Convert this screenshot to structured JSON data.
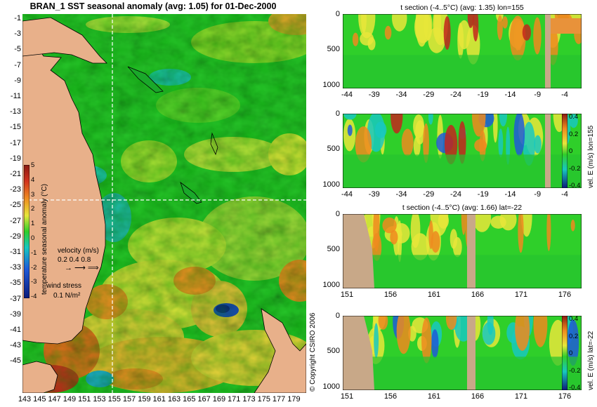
{
  "main_map": {
    "title": "BRAN_1  SST seasonal anomaly  (avg: 1.05)  for 01-Dec-2000",
    "lat_ticks": [
      "-1",
      "-3",
      "-5",
      "-7",
      "-9",
      "-11",
      "-13",
      "-15",
      "-17",
      "-19",
      "-21",
      "-23",
      "-25",
      "-27",
      "-29",
      "-31",
      "-33",
      "-35",
      "-37",
      "-39",
      "-41",
      "-43",
      "-45"
    ],
    "lon_ticks": [
      "143",
      "145",
      "147",
      "149",
      "151",
      "153",
      "155",
      "157",
      "159",
      "161",
      "163",
      "165",
      "167",
      "169",
      "171",
      "173",
      "175",
      "177",
      "179"
    ],
    "colorbar_ticks": [
      "5",
      "4",
      "3",
      "2",
      "1",
      "0",
      "-1",
      "-2",
      "-3",
      "-4"
    ],
    "colorbar_label": "temperature seasonal anomaly (°C)",
    "velocity_label": "velocity (m/s)",
    "velocity_scale": "0.2 0.4 0.8",
    "wind_label": "wind stress",
    "wind_scale": "0.1 N/m²",
    "copyright": "© Copyright CSIRO 2006",
    "section_lon": "155",
    "section_lat": "-22",
    "colors": {
      "land": "#e8b08a",
      "green": "#2fcf2a",
      "yellow": "#e8e63a",
      "orange": "#ef8a1e",
      "red": "#c2261c",
      "cyan": "#18c8c0",
      "blue": "#1f5ad8"
    }
  },
  "panels": [
    {
      "title": "t section (-4..5°C)  (avg: 1.35) lon=155",
      "x_ticks": [
        "-44",
        "-39",
        "-34",
        "-29",
        "-24",
        "-19",
        "-14",
        "-9",
        "-4"
      ],
      "y_ticks": [
        "0",
        "500",
        "1000"
      ]
    },
    {
      "title": "",
      "x_ticks": [
        "-44",
        "-39",
        "-34",
        "-29",
        "-24",
        "-19",
        "-14",
        "-9",
        "-4"
      ],
      "y_ticks": [
        "0",
        "500",
        "1000"
      ],
      "colorbar_ticks": [
        "0.4",
        "0.2",
        "0",
        "-0.2",
        "-0.4"
      ],
      "colorbar_label": "vel. E (m/s) lon=155"
    },
    {
      "title": "t section (-4..5°C)  (avg: 1.66) lat=-22",
      "x_ticks": [
        "151",
        "156",
        "161",
        "166",
        "171",
        "176"
      ],
      "y_ticks": [
        "0",
        "500",
        "1000"
      ]
    },
    {
      "title": "",
      "x_ticks": [
        "151",
        "156",
        "161",
        "166",
        "171",
        "176"
      ],
      "y_ticks": [
        "0",
        "500",
        "1000"
      ],
      "colorbar_ticks": [
        "0.4",
        "0.2",
        "0",
        "-0.2",
        "-0.4"
      ],
      "colorbar_label": "vel. E (m/s) lat=-22"
    }
  ]
}
